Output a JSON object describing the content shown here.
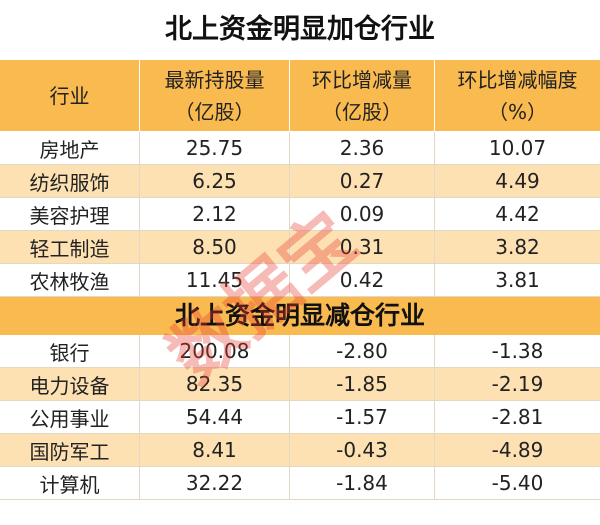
{
  "title": "北上资金明显加仓行业",
  "header": [
    [
      "行业"
    ],
    [
      "最新持股量",
      "（亿股）"
    ],
    [
      "环比增减量",
      "（亿股）"
    ],
    [
      "环比增减幅度",
      "（%）"
    ]
  ],
  "increase_rows": [
    [
      "房地产",
      "25.75",
      "2.36",
      "10.07"
    ],
    [
      "纺织服饰",
      "6.25",
      "0.27",
      "4.49"
    ],
    [
      "美容护理",
      "2.12",
      "0.09",
      "4.42"
    ],
    [
      "轻工制造",
      "8.50",
      "0.31",
      "3.82"
    ],
    [
      "农林牧渔",
      "11.45",
      "0.42",
      "3.81"
    ]
  ],
  "section_title": "北上资金明显减仓行业",
  "decrease_rows": [
    [
      "银行",
      "200.08",
      "-2.80",
      "-1.38"
    ],
    [
      "电力设备",
      "82.35",
      "-1.85",
      "-2.19"
    ],
    [
      "公用事业",
      "54.44",
      "-1.57",
      "-2.81"
    ],
    [
      "国防军工",
      "8.41",
      "-0.43",
      "-4.89"
    ],
    [
      "计算机",
      "32.22",
      "-1.84",
      "-5.40"
    ]
  ],
  "watermark": "数据宝"
}
